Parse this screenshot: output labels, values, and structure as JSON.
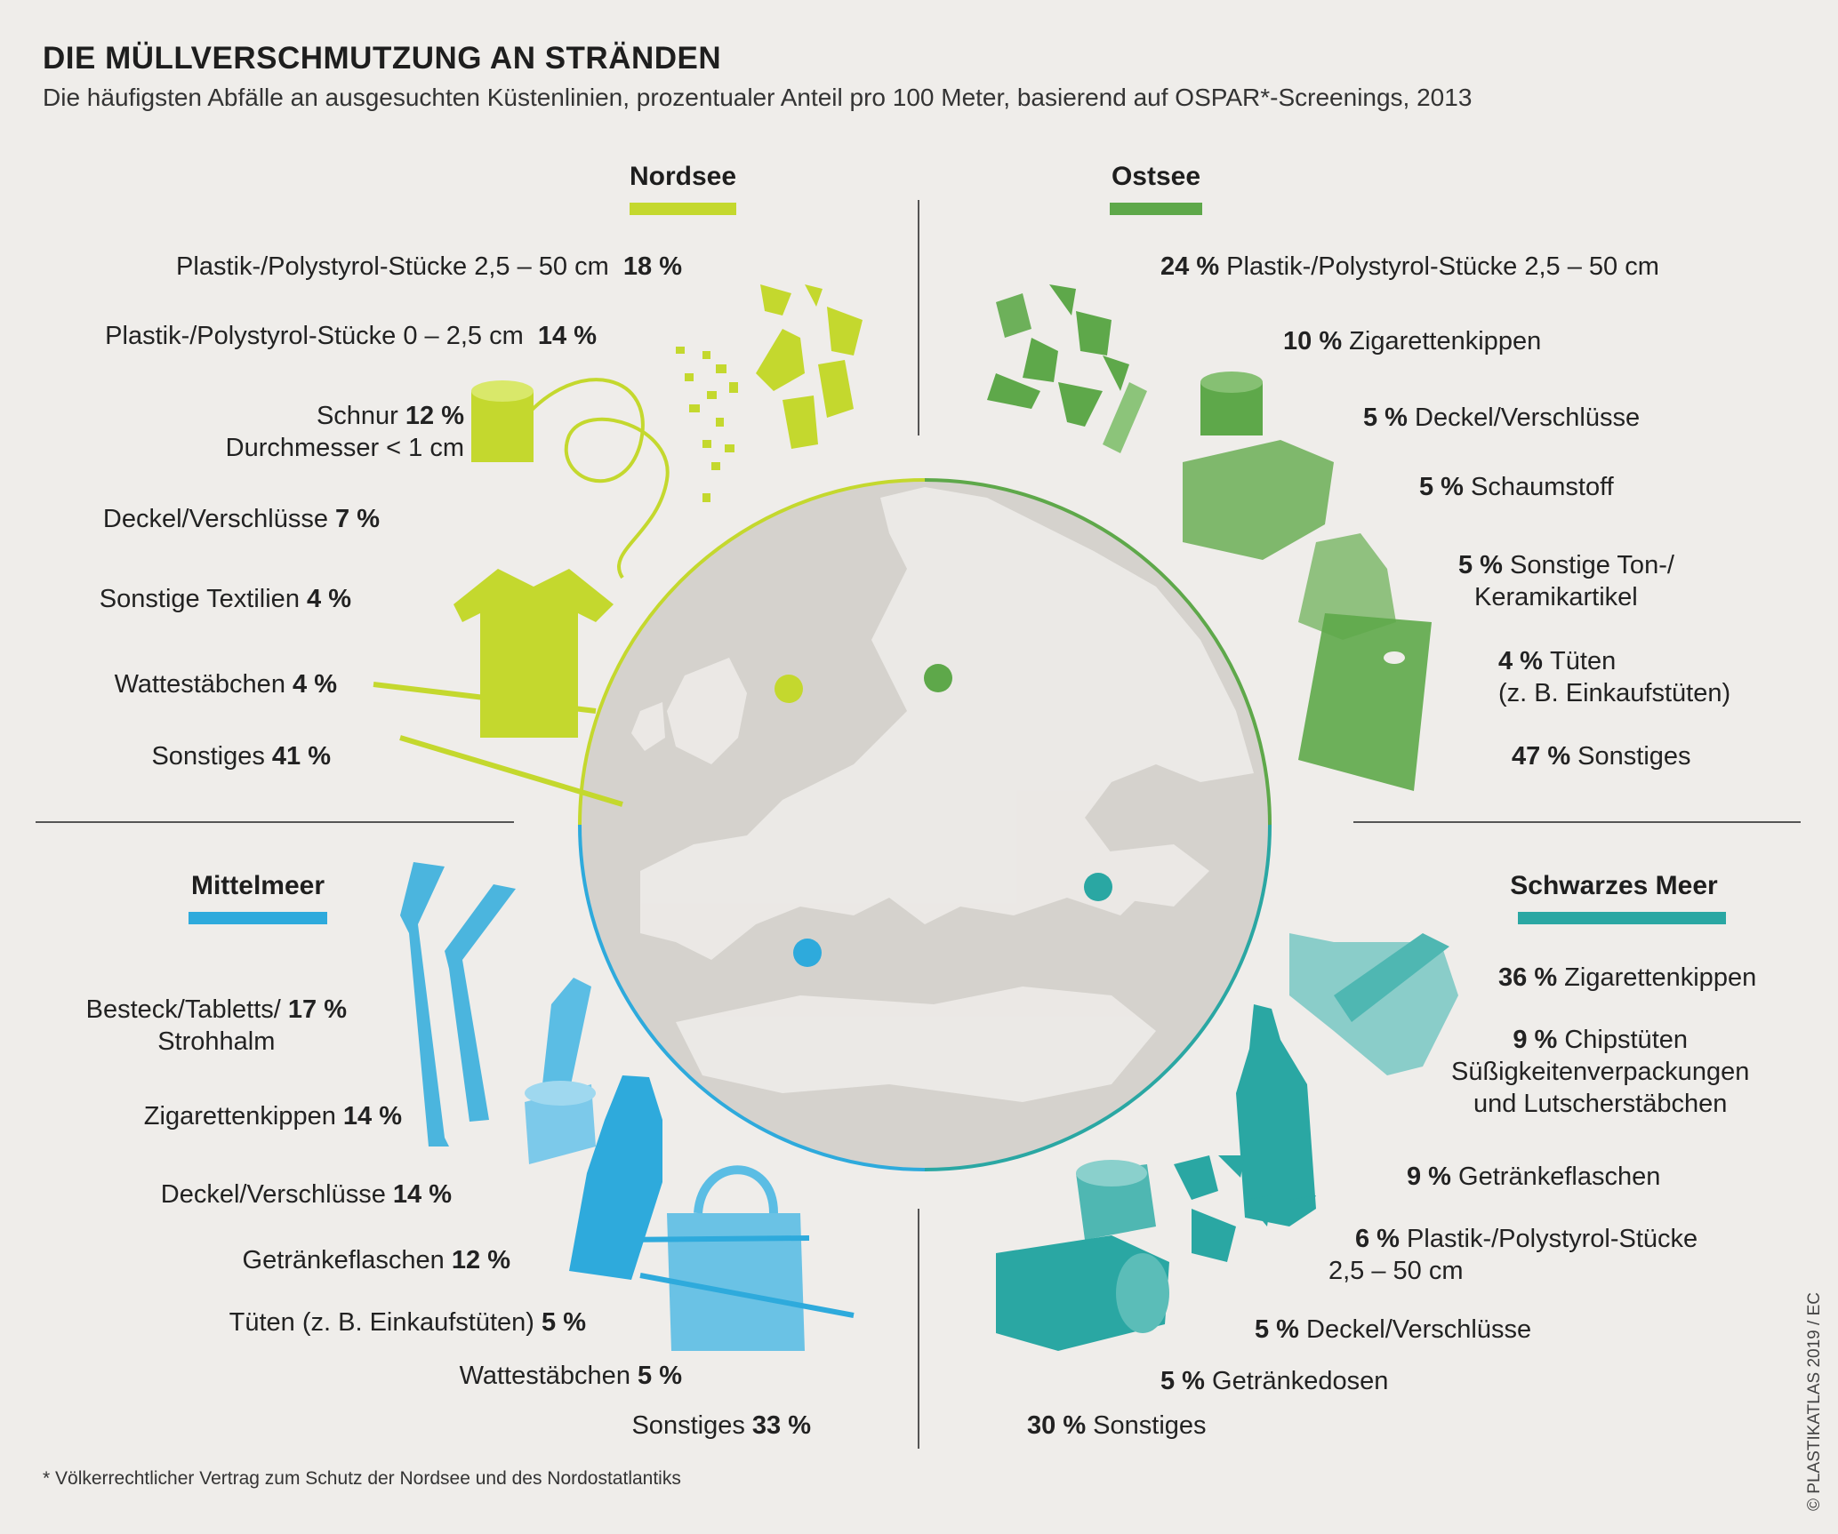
{
  "title": "DIE MÜLLVERSCHMUTZUNG AN STRÄNDEN",
  "subtitle": "Die häufigsten Abfälle an ausgesuchten Küstenlinien, prozentualer Anteil pro 100 Meter, basierend auf OSPAR*-Screenings, 2013",
  "footnote": "* Völkerrechtlicher Vertrag zum Schutz der Nordsee und des Nordostatlantiks",
  "credit": "© PLASTIKATLAS 2019 / EC",
  "colors": {
    "nordsee": "#c4d82e",
    "ostsee": "#5ea84a",
    "mittelmeer": "#2eaadc",
    "schwarzes_meer": "#2aa7a3",
    "background": "#efedea",
    "globe": "#d5d2cd"
  },
  "regions": {
    "nordsee": {
      "name": "Nordsee",
      "items": [
        {
          "label": "Plastik-/Polystyrol-Stücke 2,5 – 50 cm",
          "pct": "18 %"
        },
        {
          "label": "Plastik-/Polystyrol-Stücke 0 – 2,5 cm",
          "pct": "14 %"
        },
        {
          "label": "Schnur",
          "pct": "12 %",
          "label2": "Durchmesser < 1 cm"
        },
        {
          "label": "Deckel/Verschlüsse",
          "pct": "7 %"
        },
        {
          "label": "Sonstige Textilien",
          "pct": "4 %"
        },
        {
          "label": "Wattestäbchen",
          "pct": "4 %"
        },
        {
          "label": "Sonstiges",
          "pct": "41 %"
        }
      ]
    },
    "ostsee": {
      "name": "Ostsee",
      "items": [
        {
          "label": "Plastik-/Polystyrol-Stücke 2,5 – 50 cm",
          "pct": "24 %"
        },
        {
          "label": "Zigarettenkippen",
          "pct": "10 %"
        },
        {
          "label": "Deckel/Verschlüsse",
          "pct": "5 %"
        },
        {
          "label": "Schaumstoff",
          "pct": "5 %"
        },
        {
          "label": "Sonstige Ton-/",
          "pct": "5 %",
          "label2": "Keramikartikel"
        },
        {
          "label": "Tüten",
          "pct": "4 %",
          "label2": "(z. B. Einkaufstüten)"
        },
        {
          "label": "Sonstiges",
          "pct": "47 %"
        }
      ]
    },
    "mittelmeer": {
      "name": "Mittelmeer",
      "items": [
        {
          "label": "Besteck/Tabletts/",
          "pct": "17 %",
          "label2": "Strohhalm"
        },
        {
          "label": "Zigarettenkippen",
          "pct": "14 %"
        },
        {
          "label": "Deckel/Verschlüsse",
          "pct": "14 %"
        },
        {
          "label": "Getränkeflaschen",
          "pct": "12 %"
        },
        {
          "label": "Tüten (z. B. Einkaufstüten)",
          "pct": "5 %"
        },
        {
          "label": "Wattestäbchen",
          "pct": "5 %"
        },
        {
          "label": "Sonstiges",
          "pct": "33 %"
        }
      ]
    },
    "schwarzes_meer": {
      "name": "Schwarzes Meer",
      "items": [
        {
          "label": "Zigarettenkippen",
          "pct": "36 %"
        },
        {
          "label": "Chipstüten",
          "pct": "9 %",
          "label2": "Süßigkeitenverpackungen",
          "label3": "und Lutscherstäbchen"
        },
        {
          "label": "Getränkeflaschen",
          "pct": "9 %"
        },
        {
          "label": "Plastik-/Polystyrol-Stücke",
          "pct": "6 %",
          "label2": "2,5 – 50 cm"
        },
        {
          "label": "Deckel/Verschlüsse",
          "pct": "5 %"
        },
        {
          "label": "Getränkedosen",
          "pct": "5 %"
        },
        {
          "label": "Sonstiges",
          "pct": "30 %"
        }
      ]
    }
  }
}
